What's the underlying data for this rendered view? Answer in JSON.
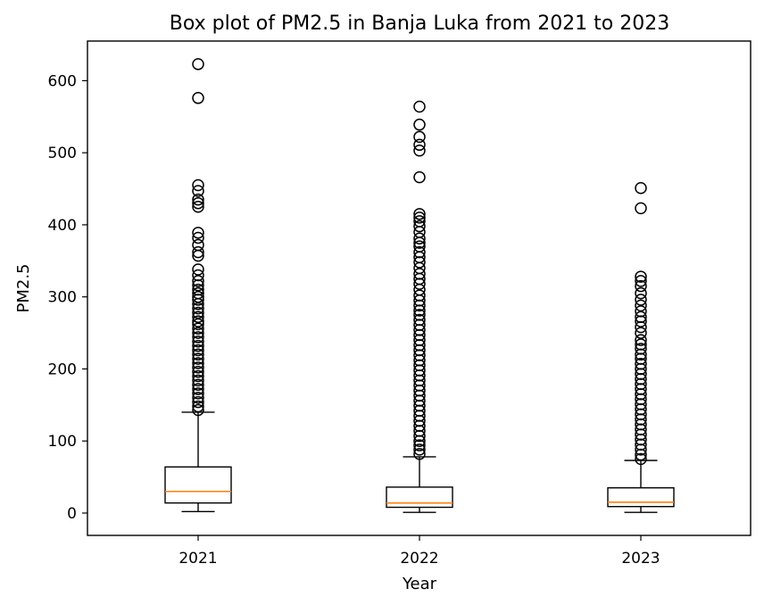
{
  "chart_data": {
    "type": "box",
    "title": "Box plot of PM2.5 in Banja Luka from 2021 to 2023",
    "xlabel": "Year",
    "ylabel": "PM2.5",
    "ylim": [
      -31,
      655
    ],
    "yticks": [
      0,
      100,
      200,
      300,
      400,
      500,
      600
    ],
    "categories": [
      "2021",
      "2022",
      "2023"
    ],
    "grid": false,
    "colors": {
      "median": "#ff7f0e",
      "box": "#000000"
    },
    "series": [
      {
        "category": "2021",
        "whisker_low": 2,
        "q1": 14,
        "median": 30,
        "q3": 64,
        "whisker_high": 140,
        "outliers": [
          623,
          576,
          455,
          447,
          435,
          430,
          425,
          389,
          382,
          372,
          362,
          357,
          338,
          330,
          322,
          316,
          310,
          305,
          300,
          296,
          290,
          284,
          278,
          272,
          266,
          262,
          256,
          250,
          244,
          238,
          232,
          226,
          220,
          214,
          208,
          202,
          196,
          190,
          184,
          178,
          172,
          166,
          160,
          154,
          148,
          143
        ]
      },
      {
        "category": "2022",
        "whisker_low": 1,
        "q1": 8,
        "median": 14,
        "q3": 36,
        "whisker_high": 78,
        "outliers": [
          564,
          539,
          522,
          511,
          503,
          466,
          415,
          410,
          405,
          398,
          390,
          381,
          375,
          370,
          362,
          355,
          348,
          340,
          332,
          325,
          318,
          310,
          302,
          295,
          288,
          281,
          275,
          268,
          261,
          254,
          247,
          240,
          233,
          226,
          219,
          212,
          205,
          198,
          191,
          184,
          177,
          170,
          163,
          156,
          149,
          142,
          135,
          128,
          121,
          114,
          107,
          100,
          94,
          88,
          82
        ]
      },
      {
        "category": "2023",
        "whisker_low": 1,
        "q1": 9,
        "median": 15,
        "q3": 35,
        "whisker_high": 73,
        "outliers": [
          451,
          423,
          328,
          322,
          315,
          305,
          296,
          288,
          280,
          272,
          266,
          258,
          250,
          240,
          234,
          228,
          220,
          214,
          207,
          200,
          193,
          186,
          179,
          172,
          165,
          158,
          151,
          144,
          137,
          130,
          123,
          116,
          109,
          102,
          95,
          88,
          81,
          75
        ]
      }
    ]
  }
}
